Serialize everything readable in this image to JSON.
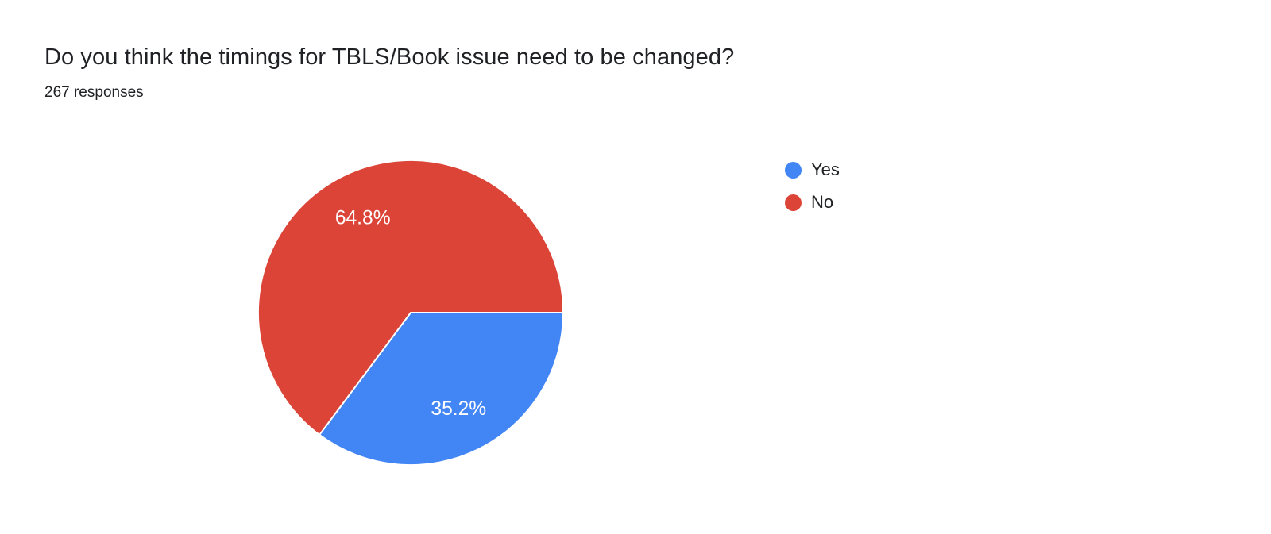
{
  "header": {
    "title": "Do you think the timings for TBLS/Book issue need to be changed?",
    "responses": "267 responses"
  },
  "chart_data": {
    "type": "pie",
    "title": "Do you think the timings for TBLS/Book issue need to be changed?",
    "subtitle": "267 responses",
    "total_responses": 267,
    "labels": [
      "Yes",
      "No"
    ],
    "values": [
      35.2,
      64.8
    ],
    "value_labels": [
      "35.2%",
      "64.8%"
    ],
    "colors": [
      "#4285f4",
      "#db4437"
    ],
    "slice_label_color": "#ffffff",
    "start_angle_deg": 0,
    "direction": "clockwise",
    "legend_position": "right",
    "background": "#ffffff"
  }
}
